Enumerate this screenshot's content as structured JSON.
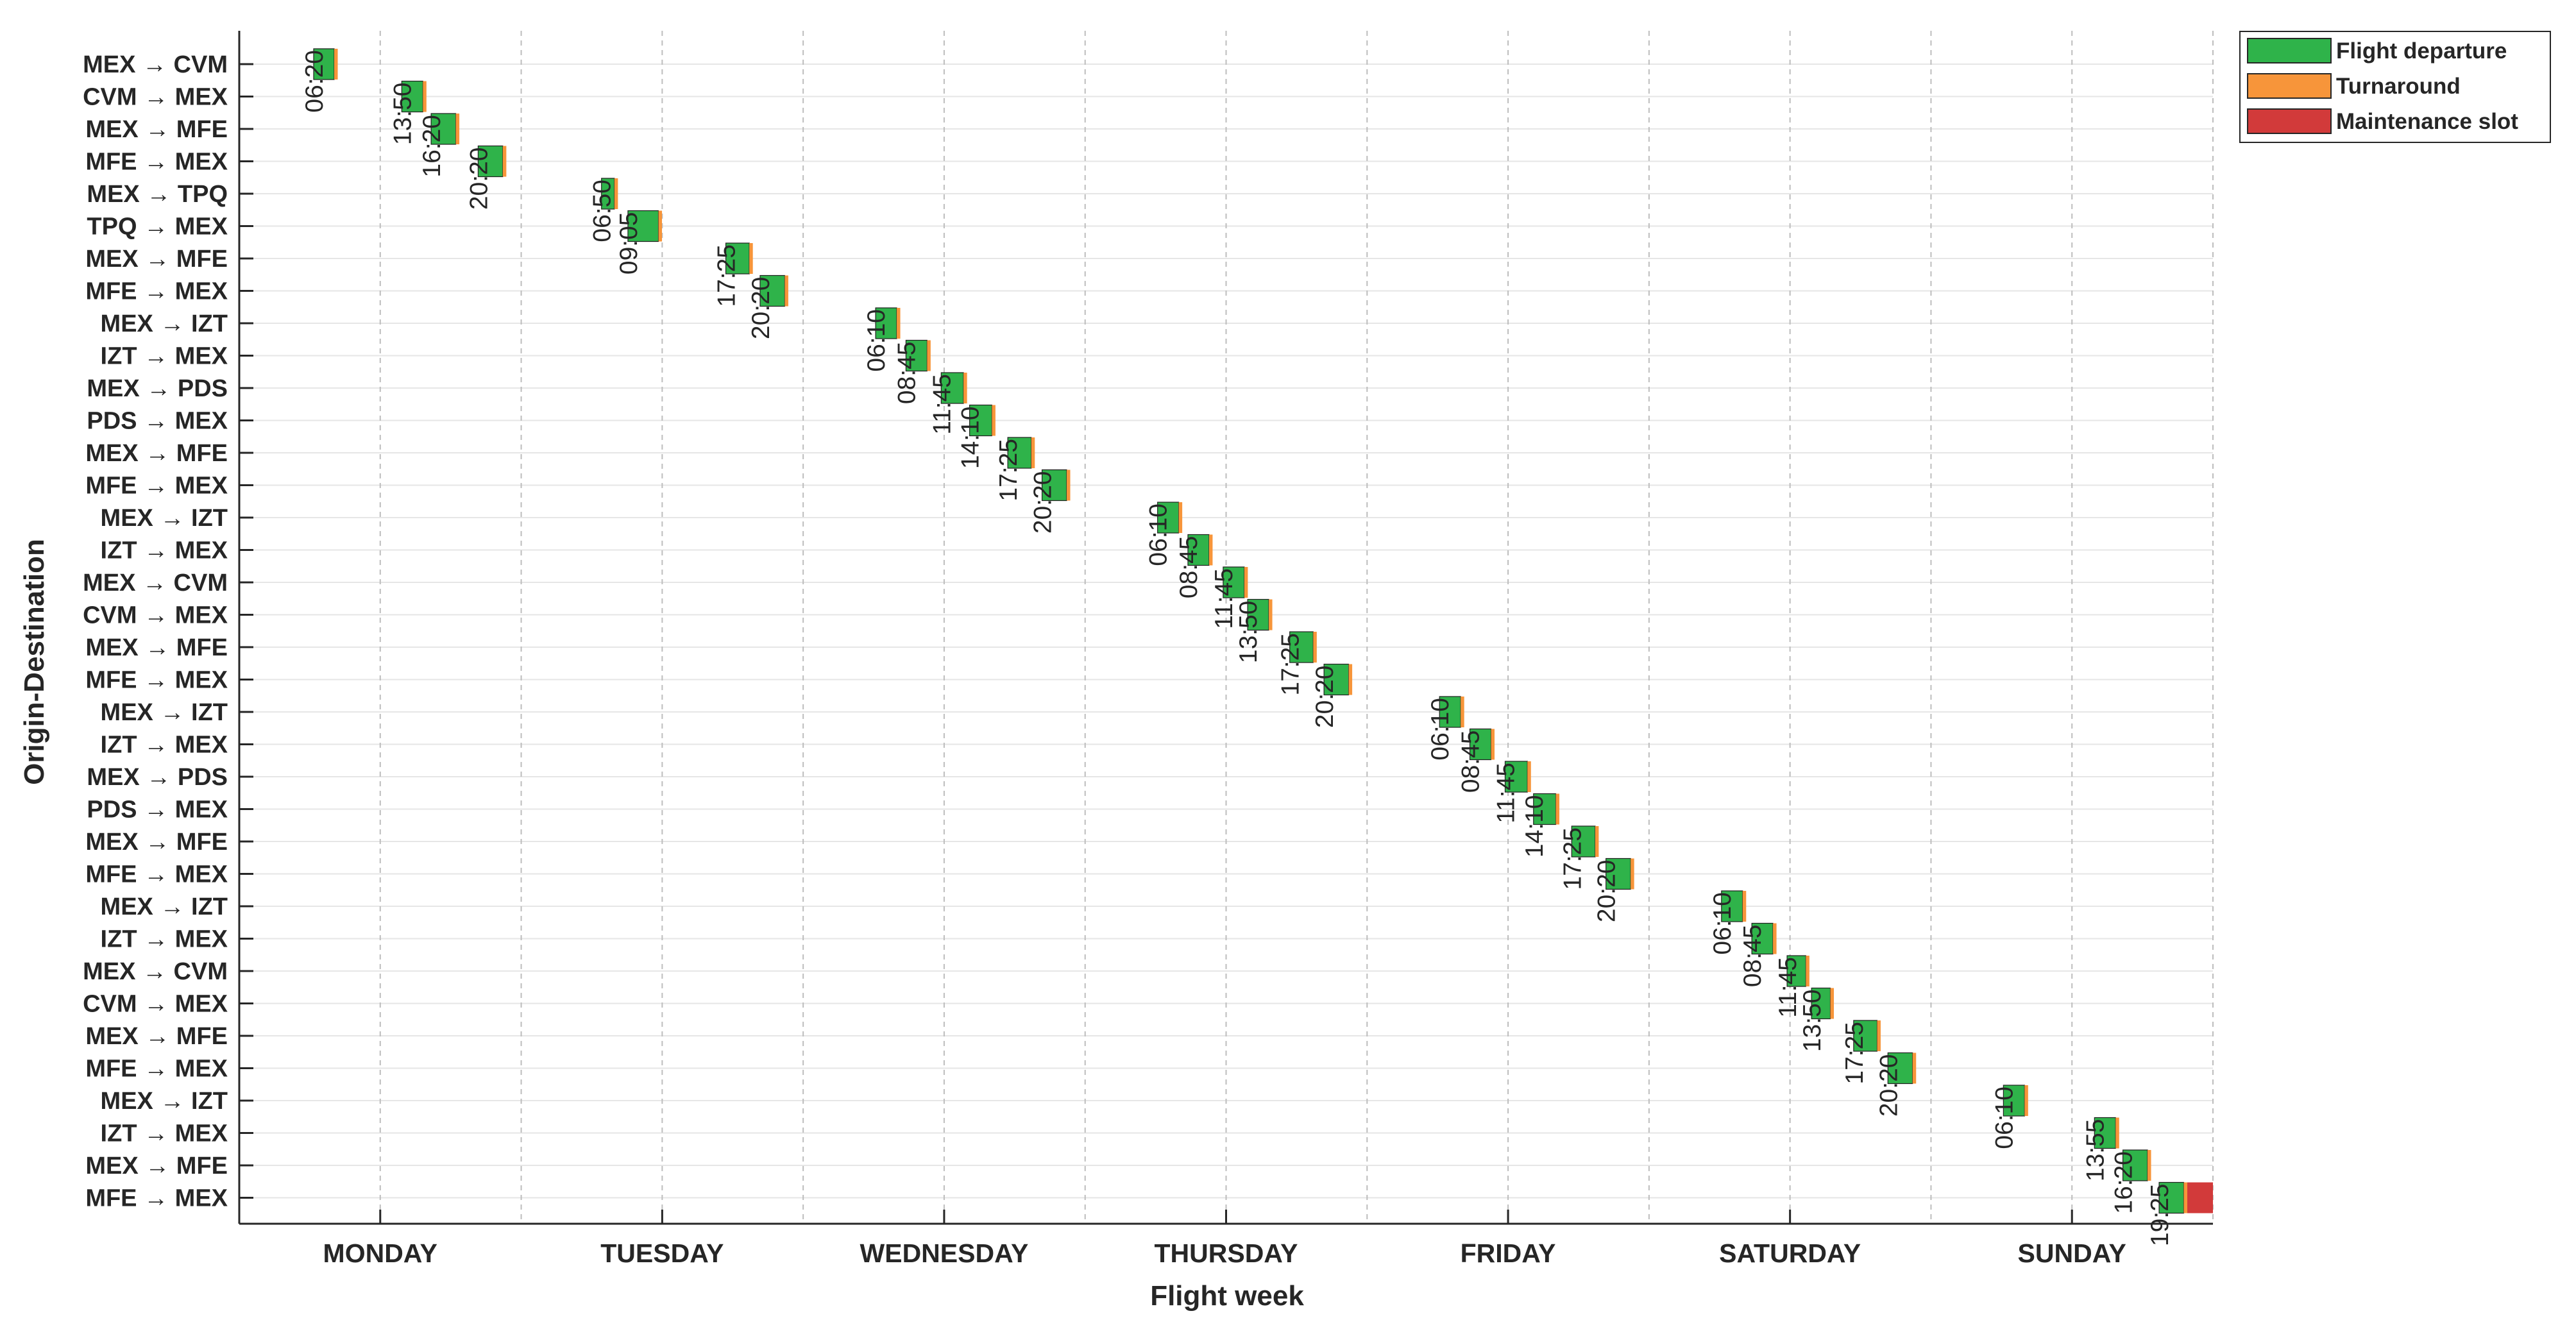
{
  "chart_data": {
    "type": "gantt",
    "xlabel": "Flight week",
    "ylabel": "Origin-Destination",
    "days": [
      "MONDAY",
      "TUESDAY",
      "WEDNESDAY",
      "THURSDAY",
      "FRIDAY",
      "SATURDAY",
      "SUNDAY"
    ],
    "rows": [
      "MEX → CVM",
      "CVM → MEX",
      "MEX → MFE",
      "MFE → MEX",
      "MEX → TPQ",
      "TPQ → MEX",
      "MEX → MFE",
      "MFE → MEX",
      "MEX → IZT",
      "IZT → MEX",
      "MEX → PDS",
      "PDS → MEX",
      "MEX → MFE",
      "MFE → MEX",
      "MEX → IZT",
      "IZT → MEX",
      "MEX → CVM",
      "CVM → MEX",
      "MEX → MFE",
      "MFE → MEX",
      "MEX → IZT",
      "IZT → MEX",
      "MEX → PDS",
      "PDS → MEX",
      "MEX → MFE",
      "MFE → MEX",
      "MEX → IZT",
      "IZT → MEX",
      "MEX → CVM",
      "CVM → MEX",
      "MEX → MFE",
      "MFE → MEX",
      "MEX → IZT",
      "IZT → MEX",
      "MEX → MFE",
      "MFE → MEX"
    ],
    "legend": {
      "position": "top-right",
      "items": [
        {
          "key": "flight",
          "label": "Flight departure",
          "color": "#2fb34a"
        },
        {
          "key": "turn",
          "label": "Turnaround",
          "color": "#f7953a"
        },
        {
          "key": "maint",
          "label": "Maintenance slot",
          "color": "#d23a3a"
        }
      ]
    },
    "flights": [
      {
        "row": 0,
        "day": 0,
        "dep": "06:20",
        "dur_h": 1.75,
        "turn_h": 0.3
      },
      {
        "row": 1,
        "day": 0,
        "dep": "13:50",
        "dur_h": 1.8,
        "turn_h": 0.3
      },
      {
        "row": 2,
        "day": 0,
        "dep": "16:20",
        "dur_h": 2.1,
        "turn_h": 0.3
      },
      {
        "row": 3,
        "day": 0,
        "dep": "20:20",
        "dur_h": 2.1,
        "turn_h": 0.3
      },
      {
        "row": 4,
        "day": 1,
        "dep": "06:50",
        "dur_h": 1.1,
        "turn_h": 0.3
      },
      {
        "row": 5,
        "day": 1,
        "dep": "09:05",
        "dur_h": 2.6,
        "turn_h": 0.3
      },
      {
        "row": 6,
        "day": 1,
        "dep": "17:25",
        "dur_h": 2.0,
        "turn_h": 0.3
      },
      {
        "row": 7,
        "day": 1,
        "dep": "20:20",
        "dur_h": 2.1,
        "turn_h": 0.3
      },
      {
        "row": 8,
        "day": 2,
        "dep": "06:10",
        "dur_h": 1.8,
        "turn_h": 0.3
      },
      {
        "row": 9,
        "day": 2,
        "dep": "08:45",
        "dur_h": 1.8,
        "turn_h": 0.3
      },
      {
        "row": 10,
        "day": 2,
        "dep": "11:45",
        "dur_h": 1.9,
        "turn_h": 0.3
      },
      {
        "row": 11,
        "day": 2,
        "dep": "14:10",
        "dur_h": 1.9,
        "turn_h": 0.3
      },
      {
        "row": 12,
        "day": 2,
        "dep": "17:25",
        "dur_h": 2.0,
        "turn_h": 0.3
      },
      {
        "row": 13,
        "day": 2,
        "dep": "20:20",
        "dur_h": 2.1,
        "turn_h": 0.3
      },
      {
        "row": 14,
        "day": 3,
        "dep": "06:10",
        "dur_h": 1.8,
        "turn_h": 0.3
      },
      {
        "row": 15,
        "day": 3,
        "dep": "08:45",
        "dur_h": 1.8,
        "turn_h": 0.3
      },
      {
        "row": 16,
        "day": 3,
        "dep": "11:45",
        "dur_h": 1.8,
        "turn_h": 0.3
      },
      {
        "row": 17,
        "day": 3,
        "dep": "13:50",
        "dur_h": 1.8,
        "turn_h": 0.3
      },
      {
        "row": 18,
        "day": 3,
        "dep": "17:25",
        "dur_h": 2.0,
        "turn_h": 0.3
      },
      {
        "row": 19,
        "day": 3,
        "dep": "20:20",
        "dur_h": 2.1,
        "turn_h": 0.3
      },
      {
        "row": 20,
        "day": 4,
        "dep": "06:10",
        "dur_h": 1.8,
        "turn_h": 0.3
      },
      {
        "row": 21,
        "day": 4,
        "dep": "08:45",
        "dur_h": 1.8,
        "turn_h": 0.3
      },
      {
        "row": 22,
        "day": 4,
        "dep": "11:45",
        "dur_h": 1.9,
        "turn_h": 0.3
      },
      {
        "row": 23,
        "day": 4,
        "dep": "14:10",
        "dur_h": 1.9,
        "turn_h": 0.3
      },
      {
        "row": 24,
        "day": 4,
        "dep": "17:25",
        "dur_h": 2.0,
        "turn_h": 0.3
      },
      {
        "row": 25,
        "day": 4,
        "dep": "20:20",
        "dur_h": 2.1,
        "turn_h": 0.3
      },
      {
        "row": 26,
        "day": 5,
        "dep": "06:10",
        "dur_h": 1.8,
        "turn_h": 0.3
      },
      {
        "row": 27,
        "day": 5,
        "dep": "08:45",
        "dur_h": 1.8,
        "turn_h": 0.3
      },
      {
        "row": 28,
        "day": 5,
        "dep": "11:45",
        "dur_h": 1.6,
        "turn_h": 0.3
      },
      {
        "row": 29,
        "day": 5,
        "dep": "13:50",
        "dur_h": 1.6,
        "turn_h": 0.3
      },
      {
        "row": 30,
        "day": 5,
        "dep": "17:25",
        "dur_h": 2.0,
        "turn_h": 0.3
      },
      {
        "row": 31,
        "day": 5,
        "dep": "20:20",
        "dur_h": 2.1,
        "turn_h": 0.3
      },
      {
        "row": 32,
        "day": 6,
        "dep": "06:10",
        "dur_h": 1.8,
        "turn_h": 0.3
      },
      {
        "row": 33,
        "day": 6,
        "dep": "13:55",
        "dur_h": 1.8,
        "turn_h": 0.3
      },
      {
        "row": 34,
        "day": 6,
        "dep": "16:20",
        "dur_h": 2.1,
        "turn_h": 0.3
      },
      {
        "row": 35,
        "day": 6,
        "dep": "19:25",
        "dur_h": 2.1,
        "turn_h": 0.3,
        "maint_h": 3.5
      }
    ]
  }
}
